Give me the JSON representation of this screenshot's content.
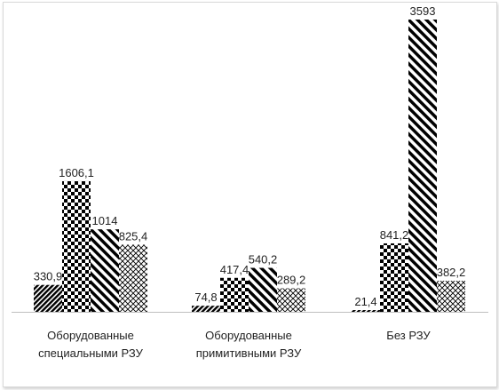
{
  "chart_data": {
    "type": "bar",
    "categories": [
      [
        "Оборудованные",
        "специальными РЗУ"
      ],
      [
        "Оборудованные",
        "примитивными РЗУ"
      ],
      [
        "Без РЗУ"
      ]
    ],
    "series": [
      {
        "values": [
          330.9,
          74.8,
          21.4
        ],
        "value_labels": [
          "330,9",
          "74,8",
          "21,4"
        ],
        "pattern": "diagonal-dense"
      },
      {
        "values": [
          1606.1,
          417.4,
          841.2
        ],
        "value_labels": [
          "1606,1",
          "417,4",
          "841,2"
        ],
        "pattern": "checkerboard"
      },
      {
        "values": [
          1014,
          540.2,
          3593
        ],
        "value_labels": [
          "1014",
          "540,2",
          "3593"
        ],
        "pattern": "diagonal-wide"
      },
      {
        "values": [
          825.4,
          289.2,
          382.2
        ],
        "value_labels": [
          "825,4",
          "289,2",
          "382,2"
        ],
        "pattern": "crosshatch"
      }
    ],
    "ylim": [
      0,
      3593
    ],
    "grid": false,
    "legend": "none",
    "colors": {
      "fill": "#000000",
      "axis": "#bfbfbf",
      "text": "#222222"
    }
  }
}
